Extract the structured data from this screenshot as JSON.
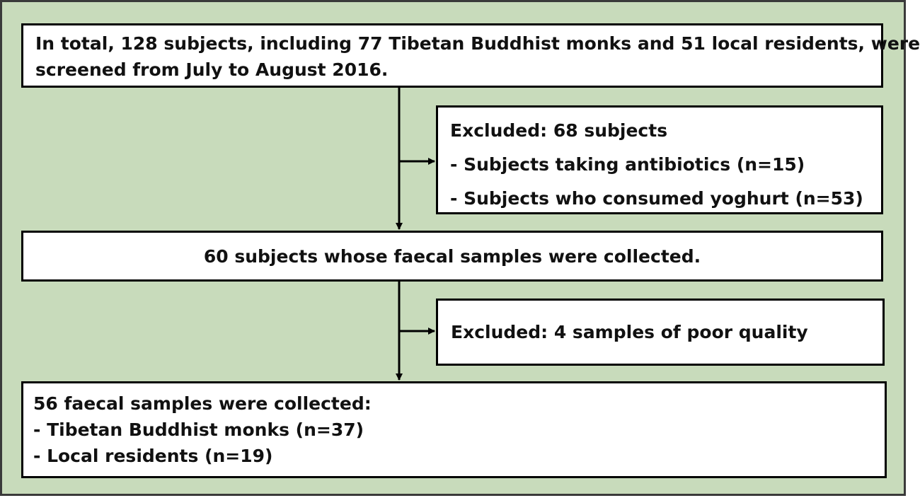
{
  "screened": {
    "lines": [
      "In total, 128 subjects, including 77 Tibetan Buddhist monks and 51 local residents, were",
      "screened from July to August 2016."
    ]
  },
  "excluded_1": {
    "title": "Excluded: 68 subjects",
    "items": [
      "- Subjects taking antibiotics (n=15)",
      "- Subjects who consumed yoghurt (n=53)"
    ]
  },
  "collected": {
    "text": "60 subjects whose faecal samples were collected."
  },
  "excluded_2": {
    "text": "Excluded: 4 samples of poor quality"
  },
  "final": {
    "title": "56 faecal samples were collected:",
    "items": [
      "- Tibetan Buddhist monks (n=37)",
      "- Local residents (n=19)"
    ]
  },
  "colors": {
    "background": "#c8dbbb",
    "box_fill": "#ffffff",
    "border": "#000000"
  }
}
